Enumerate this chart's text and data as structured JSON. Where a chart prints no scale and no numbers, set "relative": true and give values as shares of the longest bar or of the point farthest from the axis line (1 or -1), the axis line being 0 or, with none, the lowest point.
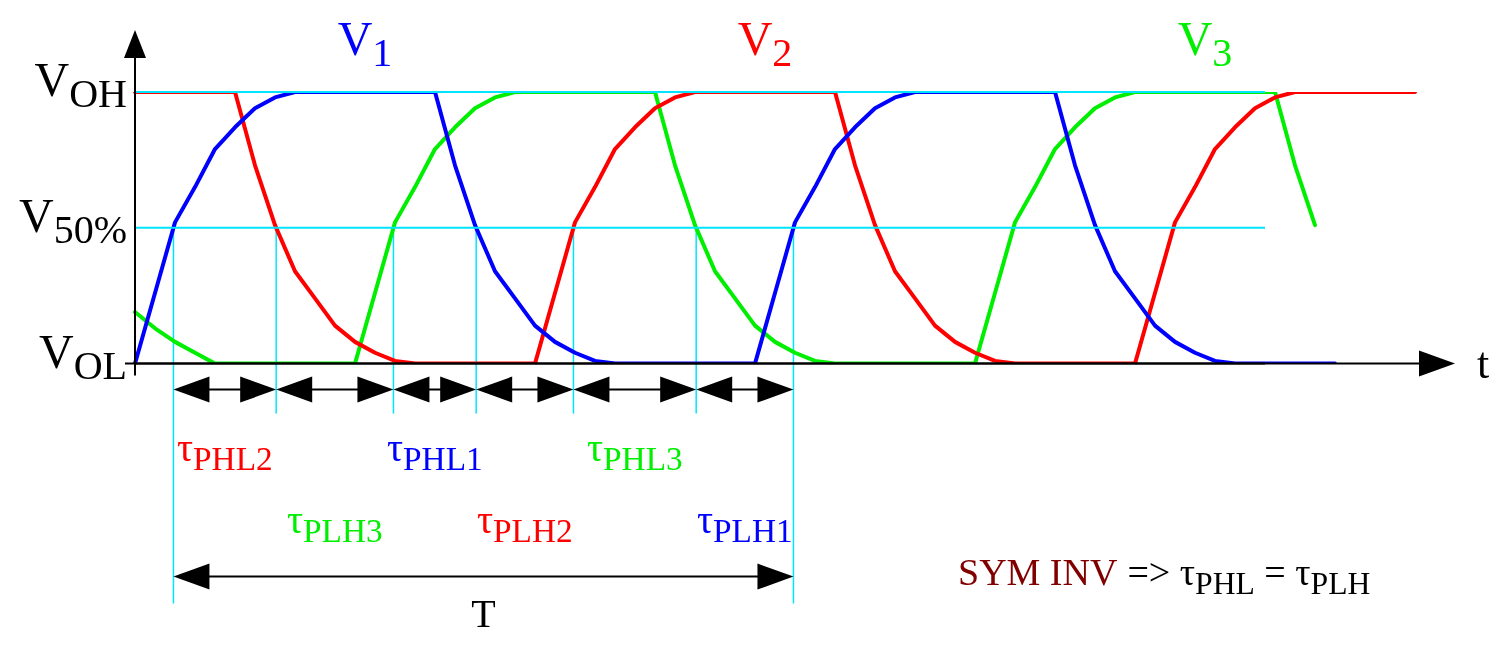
{
  "chart_data": {
    "type": "line",
    "xlabel": "t",
    "categories": [
      null,
      null,
      null,
      null,
      null,
      null,
      null,
      null,
      null,
      null,
      null,
      null,
      null,
      null,
      null,
      null,
      null,
      null,
      null,
      null,
      null,
      null,
      null,
      null,
      null,
      null,
      null,
      null,
      null,
      null,
      null,
      null,
      null,
      null,
      null,
      null,
      null,
      null,
      null,
      null,
      null,
      null,
      null,
      null,
      null,
      null,
      null,
      null,
      null,
      null,
      null,
      null,
      null,
      null,
      null,
      null,
      null,
      null,
      null,
      null,
      null,
      null,
      null,
      null,
      null,
      null
    ],
    "relative": true,
    "legend": false,
    "marker": "none",
    "line_style": "solid",
    "series": [
      {
        "name": "V$_{1}$",
        "color": "#0000ff",
        "values": [
          0,
          0.26,
          0.52,
          0.65,
          0.79,
          0.87,
          0.94,
          0.98,
          1,
          1,
          1,
          1,
          1,
          1,
          1,
          1,
          0.73,
          0.51,
          0.34,
          0.24,
          0.14,
          0.08,
          0.04,
          0.01,
          0,
          0,
          0,
          0,
          0,
          0,
          0,
          0,
          0.26,
          0.52,
          0.65,
          0.79,
          0.87,
          0.94,
          0.98,
          1,
          1,
          1,
          1,
          1,
          1,
          1,
          1,
          0.73,
          0.51,
          0.34,
          0.24,
          0.14,
          0.08,
          0.04,
          0.01,
          0,
          0,
          0,
          0,
          0,
          0,
          null,
          null,
          null,
          null,
          null
        ]
      },
      {
        "name": "V$_{2}$",
        "color": "#ff0000",
        "values": [
          1,
          1,
          1,
          1,
          1,
          1,
          0.73,
          0.51,
          0.34,
          0.24,
          0.14,
          0.08,
          0.04,
          0.01,
          0,
          0,
          0,
          0,
          0,
          0,
          0,
          0.26,
          0.52,
          0.65,
          0.79,
          0.87,
          0.94,
          0.98,
          1,
          1,
          1,
          1,
          1,
          1,
          1,
          1,
          0.73,
          0.51,
          0.34,
          0.24,
          0.14,
          0.08,
          0.04,
          0.01,
          0,
          0,
          0,
          0,
          0,
          0,
          0,
          0.26,
          0.52,
          0.65,
          0.79,
          0.87,
          0.94,
          0.98,
          1,
          1,
          1,
          1,
          1,
          1,
          1,
          null
        ]
      },
      {
        "name": "V$_{3}$",
        "color": "#00ee00",
        "values": [
          0.19,
          0.13,
          0.08,
          0.04,
          0,
          0,
          0,
          0,
          0,
          0,
          0,
          0,
          0.26,
          0.52,
          0.65,
          0.79,
          0.87,
          0.94,
          0.98,
          1,
          1,
          1,
          1,
          1,
          1,
          1,
          1,
          0.73,
          0.51,
          0.34,
          0.24,
          0.14,
          0.08,
          0.04,
          0.01,
          0,
          0,
          0,
          0,
          0,
          0,
          0,
          0,
          0.26,
          0.52,
          0.65,
          0.79,
          0.87,
          0.94,
          0.98,
          1,
          1,
          1,
          1,
          1,
          1,
          1,
          1,
          0.73,
          0.51,
          null,
          null,
          null,
          null,
          null,
          null
        ]
      }
    ],
    "ref_lines": [
      {
        "axis": "y",
        "value": 1,
        "label": "V$_{OH}$",
        "color": "#00e5ff"
      },
      {
        "axis": "y",
        "value": 0.5,
        "label": "V$_{50%}$",
        "color": "#00e5ff"
      },
      {
        "axis": "y",
        "value": 0,
        "label": "V$_{OL}$",
        "color": "#000000"
      }
    ],
    "annotations": [
      "τ$_{PHL2}$",
      "τ$_{PLH3}$",
      "τ$_{PHL1}$",
      "τ$_{PLH2}$",
      "τ$_{PHL3}$",
      "τ$_{PLH1}$",
      "T",
      "SYM INV",
      "=> τ$_{PHL}$ = τ$_{PLH}$"
    ]
  }
}
